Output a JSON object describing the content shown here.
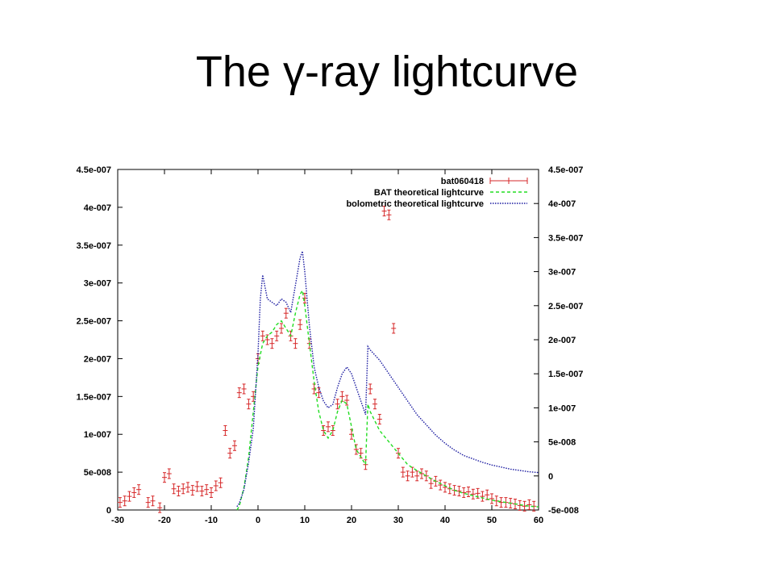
{
  "title": "The γ-ray lightcurve",
  "chart_data": {
    "type": "line",
    "title": "",
    "xlabel": "",
    "ylabel": "",
    "xlim": [
      -30,
      60
    ],
    "ylim_left": [
      0,
      4.5e-07
    ],
    "ylim_right": [
      -5e-08,
      4.5e-07
    ],
    "x_ticks": [
      -30,
      -20,
      -10,
      0,
      10,
      20,
      30,
      40,
      50,
      60
    ],
    "x_tick_labels": [
      "-30",
      "-20",
      "-10",
      "0",
      "10",
      "20",
      "30",
      "40",
      "50",
      "60"
    ],
    "y_left_ticks": [
      0,
      5e-08,
      1e-07,
      1.5e-07,
      2e-07,
      2.5e-07,
      3e-07,
      3.5e-07,
      4e-07,
      4.5e-07
    ],
    "y_left_tick_labels": [
      "0",
      "5e-008",
      "1e-007",
      "1.5e-007",
      "2e-007",
      "2.5e-007",
      "3e-007",
      "3.5e-007",
      "4e-007",
      "4.5e-007"
    ],
    "y_right_ticks": [
      -5e-08,
      0,
      5e-08,
      1e-07,
      1.5e-07,
      2e-07,
      2.5e-07,
      3e-07,
      3.5e-07,
      4e-07,
      4.5e-07
    ],
    "y_right_tick_labels": [
      "-5e-008",
      "0",
      "5e-008",
      "1e-007",
      "1.5e-007",
      "2e-007",
      "2.5e-007",
      "3e-007",
      "3.5e-007",
      "4e-007",
      "4.5e-007"
    ],
    "grid": false,
    "legend_position": "top-right",
    "series": [
      {
        "name": "bat060418",
        "style": "errorbar",
        "color": "#d62728",
        "axis": "left",
        "x": [
          -29.5,
          -28.5,
          -27.5,
          -26.5,
          -25.5,
          -23.5,
          -22.5,
          -21,
          -20,
          -19,
          -18,
          -17,
          -16,
          -15,
          -14,
          -13,
          -12,
          -11,
          -10,
          -9,
          -8,
          -7,
          -6,
          -5,
          -4,
          -3,
          -2,
          -1,
          0,
          1,
          2,
          3,
          4,
          5,
          6,
          7,
          8,
          9,
          10,
          11,
          12,
          13,
          14,
          15,
          16,
          17,
          18,
          19,
          20,
          21,
          22,
          23,
          24,
          25,
          26,
          27,
          28,
          29,
          30,
          31,
          32,
          33,
          34,
          35,
          36,
          37,
          38,
          39,
          40,
          41,
          42,
          43,
          44,
          45,
          46,
          47,
          48,
          49,
          50,
          51,
          52,
          53,
          54,
          55,
          56,
          57,
          58,
          59
        ],
        "y": [
          1e-08,
          1.2e-08,
          1.8e-08,
          2.3e-08,
          2.7e-08,
          1e-08,
          1.2e-08,
          3e-09,
          4.3e-08,
          4.8e-08,
          2.8e-08,
          2.5e-08,
          2.8e-08,
          3e-08,
          2.6e-08,
          3.1e-08,
          2.5e-08,
          2.7e-08,
          2.3e-08,
          3.2e-08,
          3.6e-08,
          1.05e-07,
          7.5e-08,
          8.5e-08,
          1.55e-07,
          1.6e-07,
          1.4e-07,
          1.5e-07,
          2e-07,
          2.3e-07,
          2.25e-07,
          2.2e-07,
          2.3e-07,
          2.4e-07,
          2.6e-07,
          2.3e-07,
          2.2e-07,
          2.45e-07,
          2.8e-07,
          2.2e-07,
          1.6e-07,
          1.55e-07,
          1.05e-07,
          1.1e-07,
          1.05e-07,
          1.4e-07,
          1.5e-07,
          1.45e-07,
          1e-07,
          8e-08,
          7.5e-08,
          6e-08,
          1.6e-07,
          1.4e-07,
          1.2e-07,
          3.95e-07,
          3.9e-07,
          2.4e-07,
          7.5e-08,
          5e-08,
          4.5e-08,
          5e-08,
          4.5e-08,
          4.8e-08,
          4.5e-08,
          3.5e-08,
          3.8e-08,
          3.3e-08,
          3e-08,
          2.8e-08,
          2.6e-08,
          2.5e-08,
          2.3e-08,
          2.4e-08,
          2.1e-08,
          2.2e-08,
          1.8e-08,
          2e-08,
          1.5e-08,
          1.2e-08,
          1e-08,
          1e-08,
          9e-09,
          8e-09,
          6e-09,
          5e-09,
          7e-09,
          5e-09
        ]
      },
      {
        "name": "BAT theoretical lightcurve",
        "style": "dashed",
        "color": "#22dd22",
        "axis": "left",
        "x": [
          -4.5,
          -4,
          -3,
          -2,
          -1,
          0,
          1,
          2,
          3,
          4,
          5,
          6,
          7,
          8,
          9,
          9.5,
          10,
          11,
          12,
          13,
          14,
          15,
          16,
          17,
          18,
          19,
          20,
          21,
          22,
          23,
          23.5,
          24,
          26,
          28,
          30,
          32,
          34,
          36,
          38,
          40,
          42,
          44,
          46,
          48,
          50,
          52,
          54,
          56,
          58,
          60
        ],
        "y": [
          0,
          5e-09,
          3e-08,
          7e-08,
          1.3e-07,
          1.9e-07,
          2.2e-07,
          2.3e-07,
          2.35e-07,
          2.45e-07,
          2.5e-07,
          2.4e-07,
          2.3e-07,
          2.6e-07,
          2.85e-07,
          2.9e-07,
          2.7e-07,
          2.2e-07,
          1.7e-07,
          1.3e-07,
          1.05e-07,
          9.5e-08,
          1.05e-07,
          1.3e-07,
          1.45e-07,
          1.4e-07,
          1.1e-07,
          8e-08,
          7e-08,
          6e-08,
          1.4e-07,
          1.3e-07,
          1.05e-07,
          9e-08,
          7.5e-08,
          6e-08,
          5.2e-08,
          4.5e-08,
          3.8e-08,
          3.2e-08,
          2.6e-08,
          2.2e-08,
          1.9e-08,
          1.6e-08,
          1.3e-08,
          1.1e-08,
          9e-09,
          7e-09,
          5e-09,
          4e-09
        ]
      },
      {
        "name": "bolometric theoretical lightcurve",
        "style": "dotted",
        "color": "#1a1aa0",
        "axis": "right",
        "x": [
          -4.5,
          -4,
          -3,
          -2,
          -1,
          0,
          0.5,
          1,
          2,
          3,
          4,
          5,
          6,
          7,
          8,
          9,
          9.5,
          10,
          11,
          12,
          13,
          14,
          15,
          16,
          17,
          18,
          19,
          20,
          21,
          22,
          23,
          23.5,
          24,
          26,
          28,
          30,
          32,
          34,
          36,
          38,
          40,
          42,
          44,
          46,
          48,
          50,
          52,
          54,
          56,
          58,
          60
        ],
        "y": [
          -4.5e-08,
          -4e-08,
          -2e-08,
          2e-08,
          7e-08,
          1.8e-07,
          2.6e-07,
          2.95e-07,
          2.6e-07,
          2.55e-07,
          2.5e-07,
          2.6e-07,
          2.55e-07,
          2.4e-07,
          2.8e-07,
          3.2e-07,
          3.3e-07,
          3e-07,
          2.2e-07,
          1.6e-07,
          1.3e-07,
          1.1e-07,
          1e-07,
          1.05e-07,
          1.3e-07,
          1.5e-07,
          1.6e-07,
          1.5e-07,
          1.3e-07,
          1.1e-07,
          9e-08,
          1.9e-07,
          1.85e-07,
          1.7e-07,
          1.5e-07,
          1.3e-07,
          1.1e-07,
          9e-08,
          7.5e-08,
          6e-08,
          4.8e-08,
          3.8e-08,
          3e-08,
          2.5e-08,
          2e-08,
          1.6e-08,
          1.3e-08,
          1e-08,
          8e-09,
          6e-09,
          5e-09
        ]
      }
    ]
  }
}
